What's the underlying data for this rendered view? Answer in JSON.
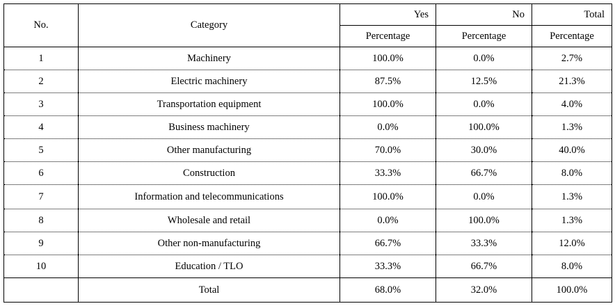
{
  "table": {
    "headers": {
      "no": "No.",
      "category": "Category",
      "yes": "Yes",
      "no_col": "No",
      "total": "Total",
      "sub_yes": "Percentage",
      "sub_no": "Percentage",
      "sub_total": "Percentage"
    },
    "rows": [
      {
        "no": "1",
        "category": "Machinery",
        "yes": "100.0%",
        "no_pct": "0.0%",
        "total": "2.7%"
      },
      {
        "no": "2",
        "category": "Electric machinery",
        "yes": "87.5%",
        "no_pct": "12.5%",
        "total": "21.3%"
      },
      {
        "no": "3",
        "category": "Transportation equipment",
        "yes": "100.0%",
        "no_pct": "0.0%",
        "total": "4.0%"
      },
      {
        "no": "4",
        "category": "Business machinery",
        "yes": "0.0%",
        "no_pct": "100.0%",
        "total": "1.3%"
      },
      {
        "no": "5",
        "category": "Other manufacturing",
        "yes": "70.0%",
        "no_pct": "30.0%",
        "total": "40.0%"
      },
      {
        "no": "6",
        "category": "Construction",
        "yes": "33.3%",
        "no_pct": "66.7%",
        "total": "8.0%"
      },
      {
        "no": "7",
        "category": "Information and telecommunications",
        "yes": "100.0%",
        "no_pct": "0.0%",
        "total": "1.3%"
      },
      {
        "no": "8",
        "category": "Wholesale and retail",
        "yes": "0.0%",
        "no_pct": "100.0%",
        "total": "1.3%"
      },
      {
        "no": "9",
        "category": "Other non-manufacturing",
        "yes": "66.7%",
        "no_pct": "33.3%",
        "total": "12.0%"
      },
      {
        "no": "10",
        "category": "Education / TLO",
        "yes": "33.3%",
        "no_pct": "66.7%",
        "total": "8.0%"
      }
    ],
    "total_row": {
      "label": "Total",
      "yes": "68.0%",
      "no_pct": "32.0%",
      "total": "100.0%"
    }
  }
}
